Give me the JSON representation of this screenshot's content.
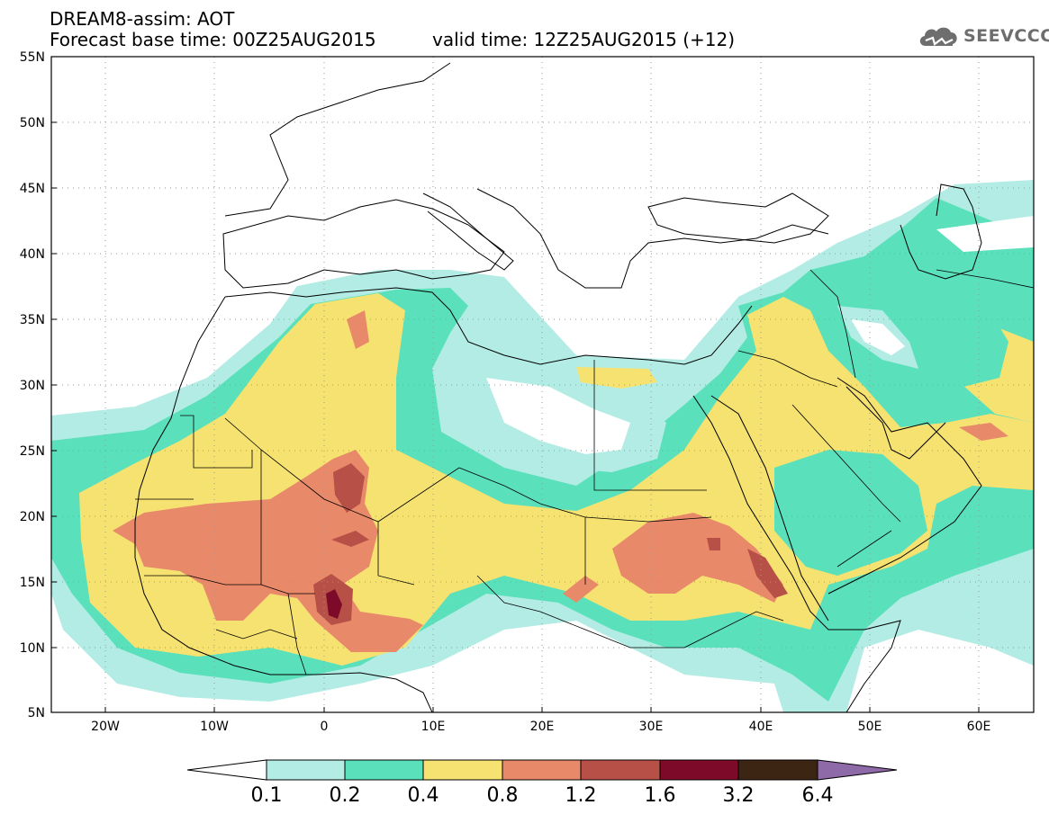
{
  "header": {
    "line1": "DREAM8-assim: AOT",
    "line2": "Forecast base time: 00Z25AUG2015",
    "valid": "valid time: 12Z25AUG2015 (+12)",
    "logo_text": "SEEVCCC",
    "logo_icon": "cloud-icon"
  },
  "axes": {
    "lat_labels": [
      "55N",
      "50N",
      "45N",
      "40N",
      "35N",
      "30N",
      "25N",
      "20N",
      "15N",
      "10N",
      "5N"
    ],
    "lon_labels": [
      "20W",
      "10W",
      "0",
      "10E",
      "20E",
      "30E",
      "40E",
      "50E",
      "60E"
    ],
    "lon_range": [
      -25,
      65
    ],
    "lat_range": [
      5,
      55
    ]
  },
  "colorbar": {
    "labels": [
      "0.1",
      "0.2",
      "0.4",
      "0.8",
      "1.2",
      "1.6",
      "3.2",
      "6.4"
    ],
    "colors": [
      "#b3ece4",
      "#5ae0bb",
      "#f5e271",
      "#e8896a",
      "#b75047",
      "#7e0a2a",
      "#3d2514",
      "#8e6aa8"
    ]
  }
}
